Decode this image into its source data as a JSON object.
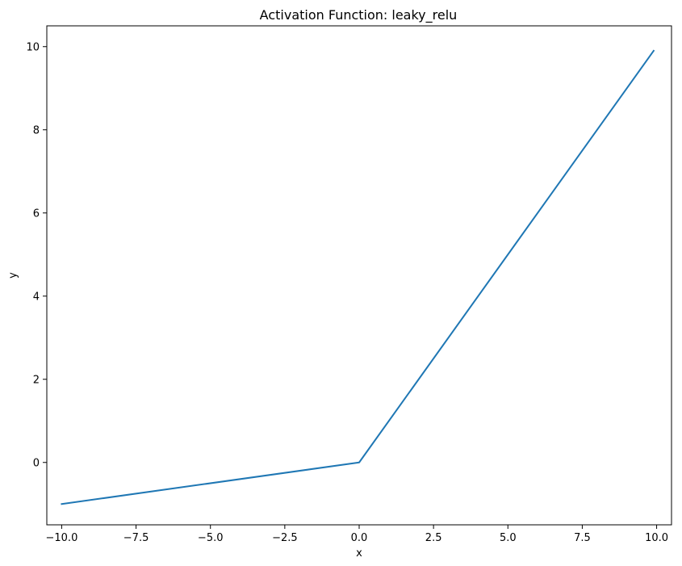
{
  "chart_data": {
    "type": "line",
    "title": "Activation Function: leaky_relu",
    "xlabel": "x",
    "ylabel": "y",
    "xlim": [
      -10.5,
      10.5
    ],
    "ylim": [
      -1.5,
      10.5
    ],
    "grid": false,
    "x_ticks": [
      -10.0,
      -7.5,
      -5.0,
      -2.5,
      0.0,
      2.5,
      5.0,
      7.5,
      10.0
    ],
    "x_tick_labels": [
      "−10.0",
      "−7.5",
      "−5.0",
      "−2.5",
      "0.0",
      "2.5",
      "5.0",
      "7.5",
      "10.0"
    ],
    "y_ticks": [
      0,
      2,
      4,
      6,
      8,
      10
    ],
    "y_tick_labels": [
      "0",
      "2",
      "4",
      "6",
      "8",
      "10"
    ],
    "series": [
      {
        "color": "#1f77b4",
        "x": [
          -10.0,
          0.0,
          9.9
        ],
        "y": [
          -1.0,
          0.0,
          9.9
        ]
      }
    ]
  }
}
